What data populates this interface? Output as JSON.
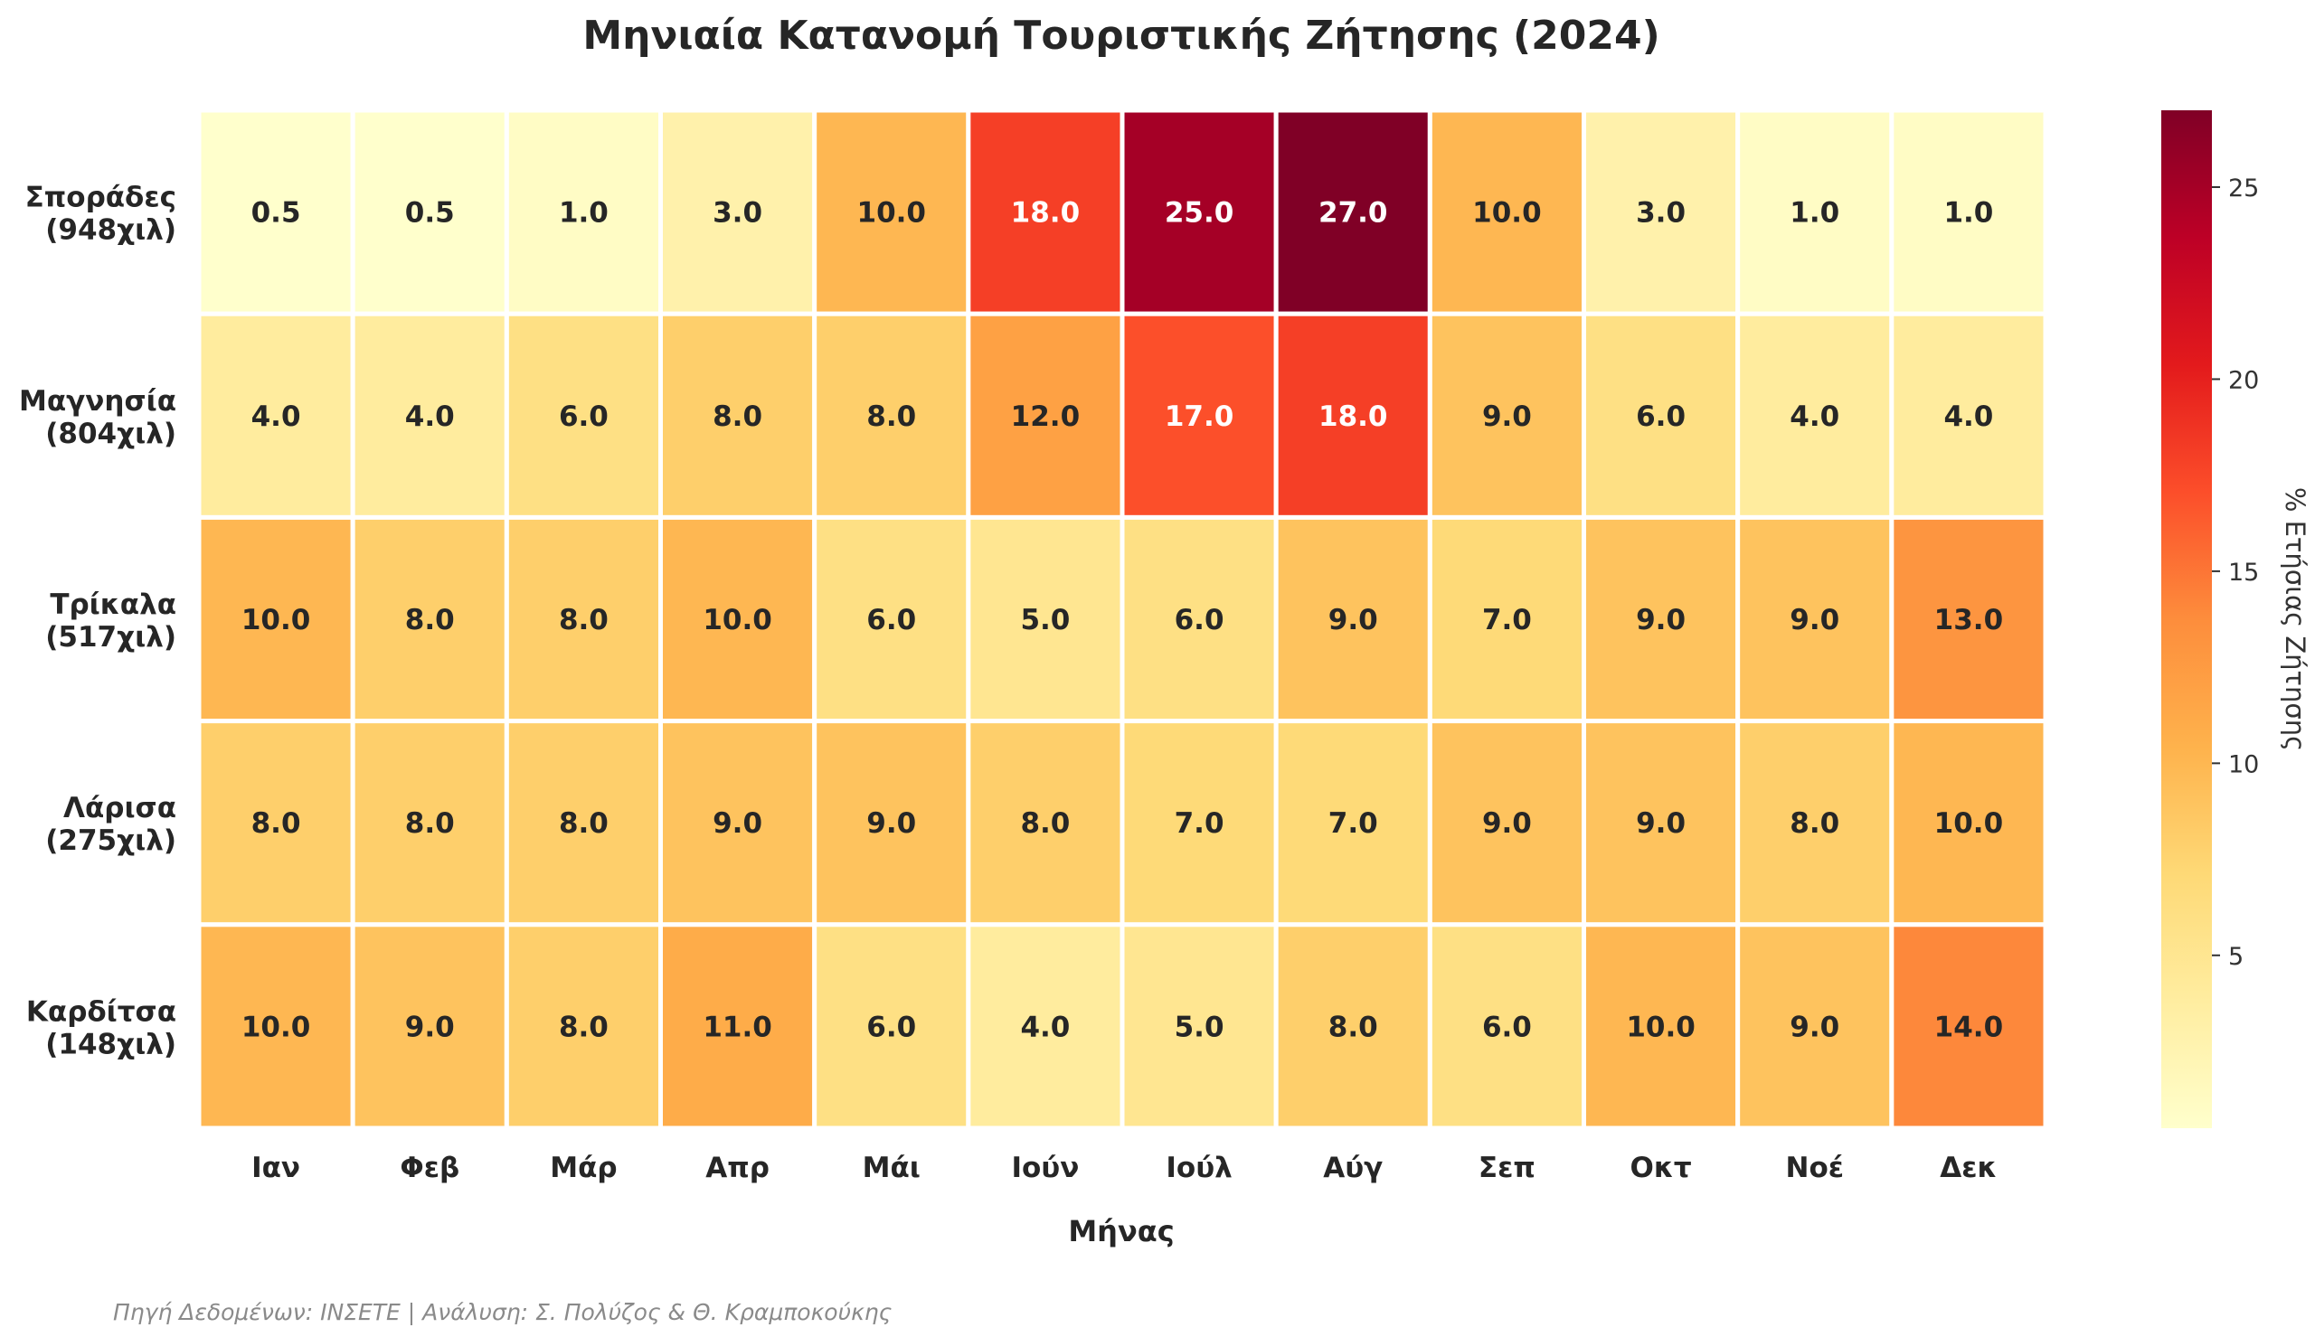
{
  "chart_data": {
    "type": "heatmap",
    "title": "Μηνιαία Κατανομή Τουριστικής Ζήτησης (2024)",
    "xlabel": "Μήνας",
    "ylabel": "",
    "columns": [
      "Ιαν",
      "Φεβ",
      "Μάρ",
      "Απρ",
      "Μάι",
      "Ιούν",
      "Ιούλ",
      "Αύγ",
      "Σεπ",
      "Οκτ",
      "Νοέ",
      "Δεκ"
    ],
    "rows": [
      {
        "name": "Σποράδες",
        "sub": "(948χιλ)",
        "values": [
          0.5,
          0.5,
          1.0,
          3.0,
          10.0,
          18.0,
          25.0,
          27.0,
          10.0,
          3.0,
          1.0,
          1.0
        ]
      },
      {
        "name": "Μαγνησία",
        "sub": "(804χιλ)",
        "values": [
          4.0,
          4.0,
          6.0,
          8.0,
          8.0,
          12.0,
          17.0,
          18.0,
          9.0,
          6.0,
          4.0,
          4.0
        ]
      },
      {
        "name": "Τρίκαλα",
        "sub": "(517χιλ)",
        "values": [
          10.0,
          8.0,
          8.0,
          10.0,
          6.0,
          5.0,
          6.0,
          9.0,
          7.0,
          9.0,
          9.0,
          13.0
        ]
      },
      {
        "name": "Λάρισα",
        "sub": "(275χιλ)",
        "values": [
          8.0,
          8.0,
          8.0,
          9.0,
          9.0,
          8.0,
          7.0,
          7.0,
          9.0,
          9.0,
          8.0,
          10.0
        ]
      },
      {
        "name": "Καρδίτσα",
        "sub": "(148χιλ)",
        "values": [
          10.0,
          9.0,
          8.0,
          11.0,
          6.0,
          4.0,
          5.0,
          8.0,
          6.0,
          10.0,
          9.0,
          14.0
        ]
      }
    ],
    "value_format": "one decimal",
    "colormap": "YlOrRd",
    "colorbar": {
      "label": "% Ετήσιας Ζήτησης",
      "ticks": [
        5,
        10,
        15,
        20,
        25
      ],
      "range": [
        0.5,
        27.0
      ]
    },
    "grid": false,
    "source_note": "Πηγή Δεδομένων: ΙΝΣΕΤΕ | Ανάλυση: Σ. Πολύζος & Θ. Κραμποκούκης"
  }
}
